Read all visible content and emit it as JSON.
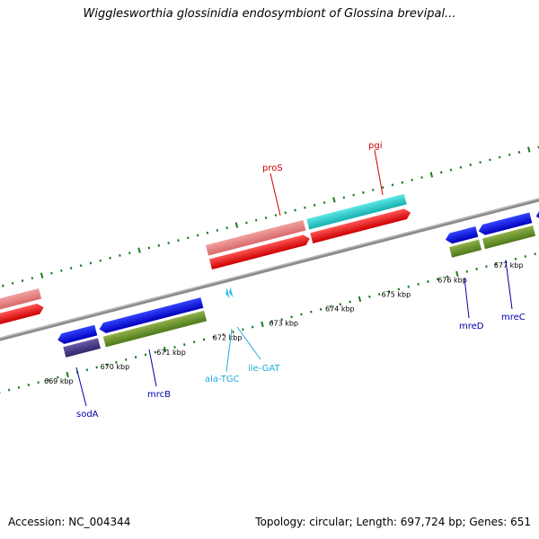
{
  "title": "Wigglesworthia glossinidia endosymbiont of Glossina brevipal...",
  "footer": {
    "accession": "Accession: NC_004344",
    "topology": "Topology: circular; Length: 697,724 bp; Genes: 651"
  },
  "colors": {
    "backbone": "#8a8a8a",
    "tick": "#1e7a1e",
    "label_red": "#cc0000",
    "label_blue": "#0000aa",
    "label_cyan": "#22aadd"
  },
  "tick_labels": [
    "669 kbp",
    "670 kbp",
    "671 kbp",
    "672 kbp",
    "673 kbp",
    "674 kbp",
    "675 kbp",
    "676 kbp",
    "677 kbp"
  ],
  "genes": [
    {
      "name": "proS",
      "color": "red"
    },
    {
      "name": "pgi",
      "color": "red"
    },
    {
      "name": "sodA",
      "color": "blue"
    },
    {
      "name": "mrcB",
      "color": "blue"
    },
    {
      "name": "mreD",
      "color": "blue"
    },
    {
      "name": "mreC",
      "color": "blue"
    },
    {
      "name": "ala-TGC",
      "color": "cyan"
    },
    {
      "name": "ile-GAT",
      "color": "cyan"
    }
  ]
}
